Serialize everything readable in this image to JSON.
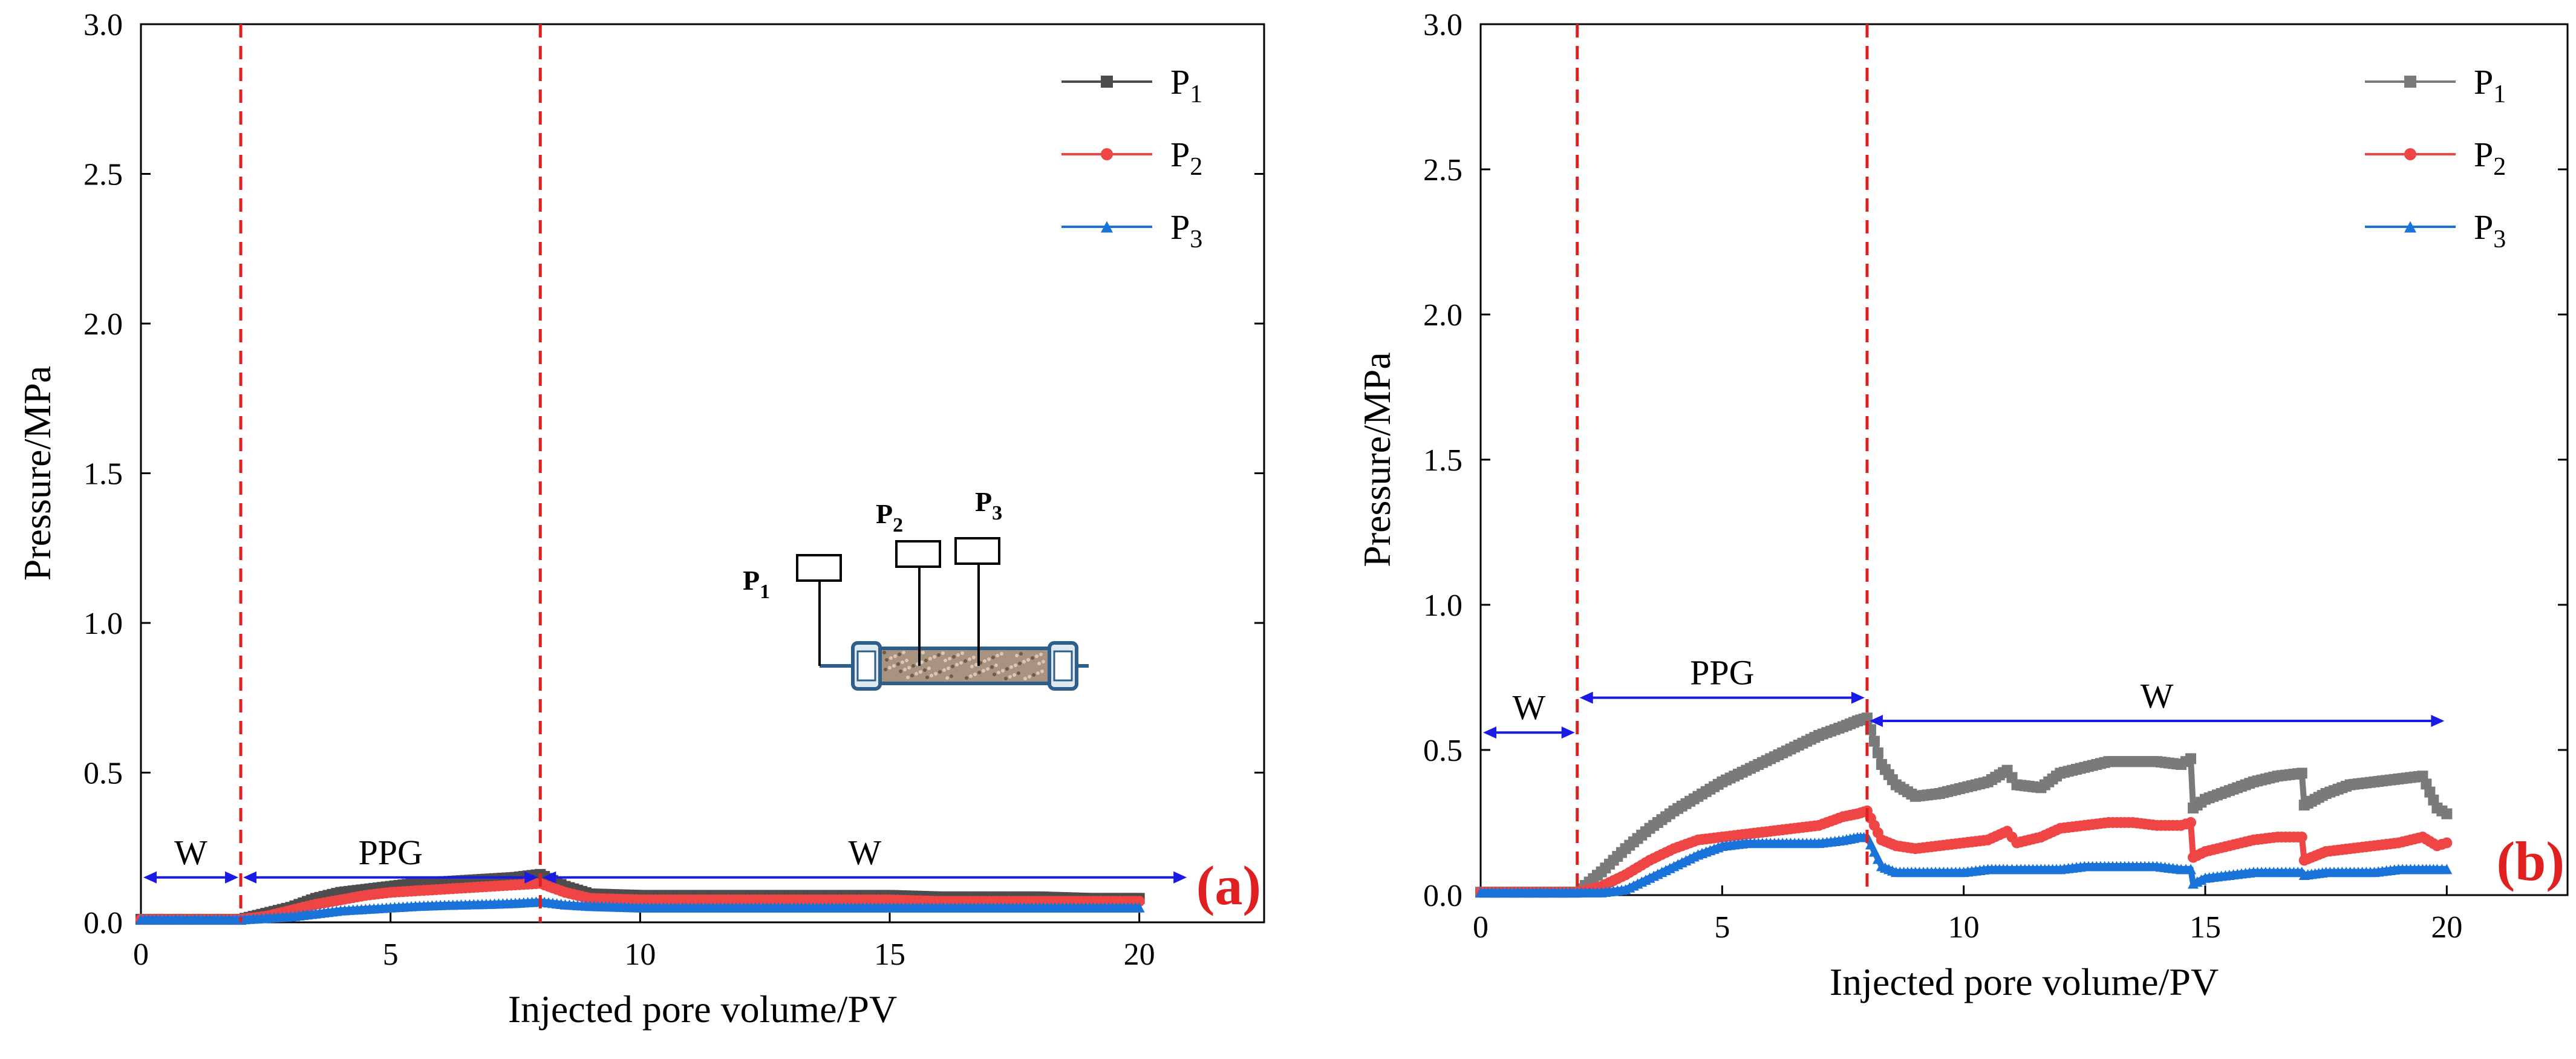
{
  "chart_data": [
    {
      "type": "line",
      "panel_label": "(a)",
      "xlabel": "Injected pore volume/PV",
      "ylabel": "Pressure/MPa",
      "xlim": [
        0,
        22.5
      ],
      "ylim": [
        0,
        3.0
      ],
      "xticks": [
        0,
        5,
        10,
        15,
        20
      ],
      "xtick_labels": [
        "0",
        "5",
        "10",
        "15",
        "20"
      ],
      "yticks": [
        0,
        0.5,
        1.0,
        1.5,
        2.0,
        2.5,
        3.0
      ],
      "ytick_labels": [
        "0.0",
        "0.5",
        "1.0",
        "1.5",
        "2.0",
        "2.5",
        "3.0"
      ],
      "grid": false,
      "legend_position": "top-right",
      "phase_boundaries": [
        2,
        8
      ],
      "phases": [
        {
          "label": "W",
          "from": 0,
          "to": 2,
          "y": 0.15
        },
        {
          "label": "PPG",
          "from": 2,
          "to": 8,
          "y": 0.15
        },
        {
          "label": "W",
          "from": 8,
          "to": 21,
          "y": 0.15
        }
      ],
      "inset": {
        "labels": [
          {
            "main": "P",
            "sub": "1"
          },
          {
            "main": "P",
            "sub": "2"
          },
          {
            "main": "P",
            "sub": "3"
          }
        ]
      },
      "series": [
        {
          "name": "P",
          "sub": "1",
          "color": "#4d4d4d",
          "marker": "square",
          "x": [
            0,
            1,
            2,
            2.5,
            3,
            3.5,
            4,
            4.5,
            5,
            5.5,
            6,
            6.5,
            7,
            7.5,
            8,
            8.5,
            9,
            10,
            11,
            12,
            13,
            14,
            15,
            16,
            17,
            18,
            19,
            20
          ],
          "y": [
            0.01,
            0.01,
            0.01,
            0.03,
            0.05,
            0.08,
            0.1,
            0.11,
            0.12,
            0.13,
            0.135,
            0.14,
            0.145,
            0.15,
            0.16,
            0.12,
            0.095,
            0.09,
            0.09,
            0.09,
            0.09,
            0.09,
            0.09,
            0.085,
            0.085,
            0.085,
            0.08,
            0.08
          ]
        },
        {
          "name": "P",
          "sub": "2",
          "color": "#f04545",
          "marker": "circle",
          "x": [
            0,
            1,
            2,
            2.5,
            3,
            3.5,
            4,
            4.5,
            5,
            5.5,
            6,
            6.5,
            7,
            7.5,
            8,
            8.5,
            9,
            10,
            11,
            12,
            13,
            14,
            15,
            16,
            17,
            18,
            19,
            20
          ],
          "y": [
            0.01,
            0.01,
            0.01,
            0.02,
            0.04,
            0.06,
            0.075,
            0.09,
            0.1,
            0.105,
            0.11,
            0.115,
            0.12,
            0.125,
            0.13,
            0.1,
            0.08,
            0.075,
            0.075,
            0.075,
            0.075,
            0.075,
            0.075,
            0.07,
            0.07,
            0.07,
            0.07,
            0.07
          ]
        },
        {
          "name": "P",
          "sub": "3",
          "color": "#1a73d9",
          "marker": "triangle",
          "x": [
            0,
            1,
            2,
            2.5,
            3,
            3.5,
            4,
            4.5,
            5,
            5.5,
            6,
            6.5,
            7,
            7.5,
            8,
            8.5,
            9,
            10,
            11,
            12,
            13,
            14,
            15,
            16,
            17,
            18,
            19,
            20
          ],
          "y": [
            0.01,
            0.01,
            0.01,
            0.015,
            0.02,
            0.03,
            0.04,
            0.045,
            0.05,
            0.055,
            0.058,
            0.06,
            0.062,
            0.065,
            0.07,
            0.06,
            0.055,
            0.05,
            0.05,
            0.05,
            0.05,
            0.05,
            0.05,
            0.05,
            0.05,
            0.05,
            0.05,
            0.05
          ]
        }
      ]
    },
    {
      "type": "line",
      "panel_label": "(b)",
      "xlabel": "Injected pore volume/PV",
      "ylabel": "Pressure/MPa",
      "xlim": [
        0,
        22.5
      ],
      "ylim": [
        0,
        3.0
      ],
      "xticks": [
        0,
        5,
        10,
        15,
        20
      ],
      "xtick_labels": [
        "0",
        "5",
        "10",
        "15",
        "20"
      ],
      "yticks": [
        0,
        0.5,
        1.0,
        1.5,
        2.0,
        2.5,
        3.0
      ],
      "ytick_labels": [
        "0.0",
        "0.5",
        "1.0",
        "1.5",
        "2.0",
        "2.5",
        "3.0"
      ],
      "grid": false,
      "legend_position": "top-right",
      "phase_boundaries": [
        2,
        8
      ],
      "phases": [
        {
          "label": "W",
          "from": 0,
          "to": 2,
          "y": 0.56
        },
        {
          "label": "PPG",
          "from": 2,
          "to": 8,
          "y": 0.68
        },
        {
          "label": "W",
          "from": 8,
          "to": 20,
          "y": 0.6
        }
      ],
      "series": [
        {
          "name": "P",
          "sub": "1",
          "color": "#7a7a7a",
          "marker": "square",
          "x": [
            0,
            1,
            2,
            2.5,
            3,
            3.5,
            4,
            4.5,
            5,
            5.5,
            6,
            6.5,
            7,
            7.5,
            7.8,
            8,
            8.3,
            8.6,
            9,
            9.5,
            10,
            10.5,
            10.9,
            11.1,
            11.6,
            12,
            12.5,
            13,
            13.5,
            14,
            14.5,
            14.7,
            14.75,
            15,
            15.5,
            16,
            16.5,
            17,
            17.05,
            17.5,
            18,
            18.5,
            19,
            19.5,
            19.8,
            20
          ],
          "y": [
            0.01,
            0.01,
            0.01,
            0.08,
            0.16,
            0.23,
            0.29,
            0.34,
            0.39,
            0.43,
            0.47,
            0.51,
            0.55,
            0.58,
            0.6,
            0.61,
            0.45,
            0.38,
            0.34,
            0.35,
            0.37,
            0.39,
            0.43,
            0.38,
            0.37,
            0.42,
            0.44,
            0.46,
            0.46,
            0.46,
            0.45,
            0.47,
            0.3,
            0.33,
            0.36,
            0.39,
            0.41,
            0.42,
            0.31,
            0.35,
            0.38,
            0.39,
            0.4,
            0.41,
            0.3,
            0.28
          ]
        },
        {
          "name": "P",
          "sub": "2",
          "color": "#f04545",
          "marker": "circle",
          "x": [
            0,
            1,
            2,
            2.5,
            3,
            3.5,
            4,
            4.5,
            5,
            5.5,
            6,
            6.5,
            7,
            7.5,
            7.8,
            8,
            8.3,
            8.6,
            9,
            9.5,
            10,
            10.5,
            10.9,
            11.1,
            11.6,
            12,
            12.5,
            13,
            13.5,
            14,
            14.5,
            14.7,
            14.75,
            15,
            15.5,
            16,
            16.5,
            17,
            17.05,
            17.5,
            18,
            18.5,
            19,
            19.5,
            19.8,
            20
          ],
          "y": [
            0.01,
            0.01,
            0.01,
            0.03,
            0.07,
            0.12,
            0.16,
            0.19,
            0.2,
            0.21,
            0.22,
            0.23,
            0.24,
            0.27,
            0.28,
            0.29,
            0.19,
            0.17,
            0.16,
            0.17,
            0.18,
            0.19,
            0.22,
            0.18,
            0.2,
            0.23,
            0.24,
            0.25,
            0.25,
            0.24,
            0.24,
            0.25,
            0.13,
            0.15,
            0.17,
            0.19,
            0.2,
            0.2,
            0.12,
            0.15,
            0.16,
            0.17,
            0.18,
            0.2,
            0.17,
            0.18
          ]
        },
        {
          "name": "P",
          "sub": "3",
          "color": "#1a73d9",
          "marker": "triangle",
          "x": [
            0,
            1,
            2,
            2.5,
            3,
            3.5,
            4,
            4.5,
            5,
            5.5,
            6,
            6.5,
            7,
            7.5,
            7.8,
            8,
            8.3,
            8.6,
            9,
            9.5,
            10,
            10.5,
            10.9,
            11.1,
            11.6,
            12,
            12.5,
            13,
            13.5,
            14,
            14.5,
            14.7,
            14.75,
            15,
            15.5,
            16,
            16.5,
            17,
            17.05,
            17.5,
            18,
            18.5,
            19,
            19.5,
            19.8,
            20
          ],
          "y": [
            0.01,
            0.01,
            0.01,
            0.01,
            0.02,
            0.06,
            0.1,
            0.14,
            0.17,
            0.18,
            0.18,
            0.18,
            0.18,
            0.19,
            0.2,
            0.2,
            0.1,
            0.08,
            0.08,
            0.08,
            0.08,
            0.09,
            0.09,
            0.09,
            0.09,
            0.09,
            0.1,
            0.1,
            0.1,
            0.1,
            0.09,
            0.09,
            0.04,
            0.06,
            0.07,
            0.08,
            0.08,
            0.08,
            0.07,
            0.08,
            0.08,
            0.08,
            0.09,
            0.09,
            0.09,
            0.09
          ]
        }
      ]
    }
  ]
}
